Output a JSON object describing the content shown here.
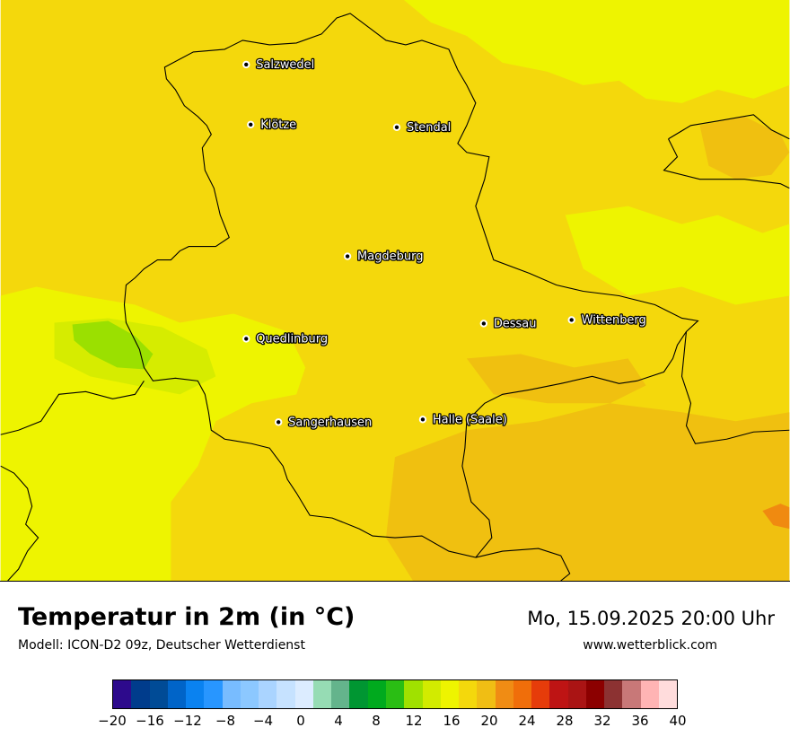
{
  "map": {
    "cities": [
      {
        "name": "Salzwedel"
      },
      {
        "name": "Klötze"
      },
      {
        "name": "Stendal"
      },
      {
        "name": "Magdeburg"
      },
      {
        "name": "Dessau"
      },
      {
        "name": "Wittenberg"
      },
      {
        "name": "Quedlinburg"
      },
      {
        "name": "Sangerhausen"
      },
      {
        "name": "Halle (Saale)"
      }
    ],
    "fill_colors": {
      "base": "#f4d80c",
      "yellow": "#eef400",
      "lime": "#d6ec00",
      "green": "#9be000",
      "gold": "#f0c010",
      "orange": "#f08a10"
    }
  },
  "header": {
    "title": "Temperatur in 2m (in °C)",
    "subtitle": "Modell: ICON-D2 09z, Deutscher Wetterdienst",
    "datetime": "Mo, 15.09.2025 20:00 Uhr",
    "website": "www.wetterblick.com"
  },
  "legend": {
    "colors": [
      "#2d0a8c",
      "#003c8c",
      "#004b96",
      "#0064c8",
      "#0a82f0",
      "#2896ff",
      "#78bcff",
      "#8cc8ff",
      "#aad4ff",
      "#c6e2ff",
      "#dcecff",
      "#96dcb4",
      "#64b48c",
      "#009632",
      "#00aa1e",
      "#2abe14",
      "#a0e100",
      "#d2eb00",
      "#eef400",
      "#f4d80c",
      "#f0be14",
      "#f08c14",
      "#f06e0a",
      "#e63c0a",
      "#be1414",
      "#aa1414",
      "#8c0000",
      "#8c3232",
      "#c87878",
      "#ffb4b4",
      "#ffdcdc"
    ],
    "ticks": [
      "−20",
      "−16",
      "−12",
      "−8",
      "−4",
      "0",
      "4",
      "8",
      "12",
      "16",
      "20",
      "24",
      "28",
      "32",
      "36",
      "40"
    ]
  }
}
